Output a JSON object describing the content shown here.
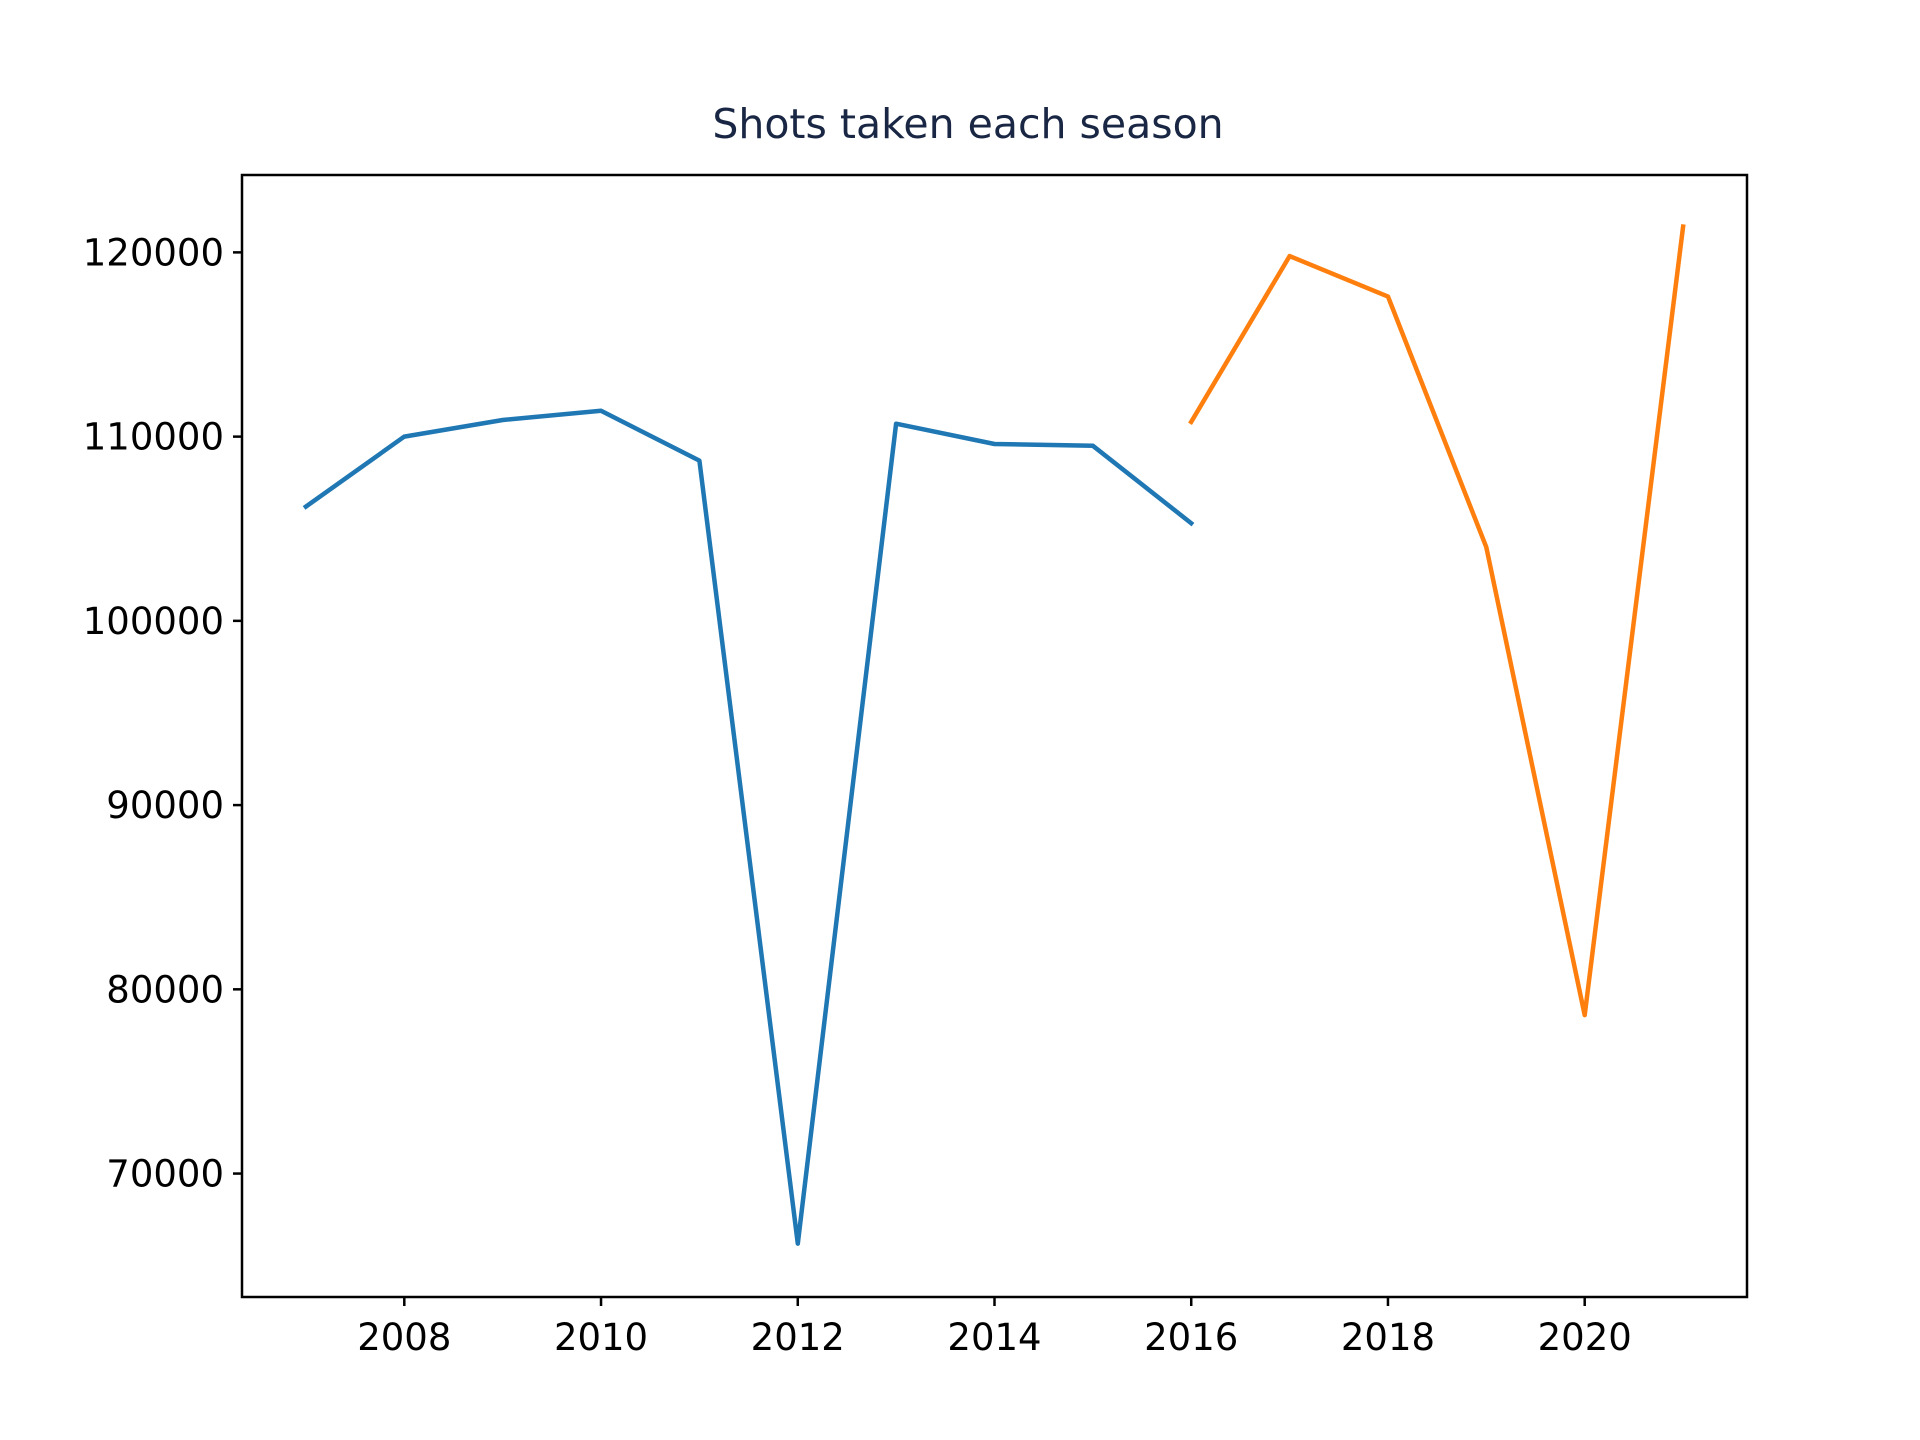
{
  "chart_data": {
    "type": "line",
    "title": "Shots taken each season",
    "xlabel": "",
    "ylabel": "",
    "xlim": [
      2006.35,
      2021.65
    ],
    "ylim": [
      63300,
      124200
    ],
    "xticks": [
      2008,
      2010,
      2012,
      2014,
      2016,
      2018,
      2020
    ],
    "yticks": [
      70000,
      80000,
      90000,
      100000,
      110000,
      120000
    ],
    "grid": false,
    "legend": "none",
    "series": [
      {
        "color": "#1f77b4",
        "x": [
          2007,
          2008,
          2009,
          2010,
          2011,
          2012,
          2013,
          2014,
          2015,
          2016
        ],
        "y": [
          106200,
          110000,
          110900,
          111400,
          108700,
          66200,
          110700,
          109600,
          109500,
          105300
        ]
      },
      {
        "color": "#ff7f0e",
        "x": [
          2016,
          2017,
          2018,
          2019,
          2020,
          2021
        ],
        "y": [
          110800,
          119800,
          117600,
          104000,
          78600,
          121400
        ]
      }
    ]
  },
  "colors": {
    "title": "#1a2744",
    "axes": "#000000",
    "background": "#ffffff"
  }
}
